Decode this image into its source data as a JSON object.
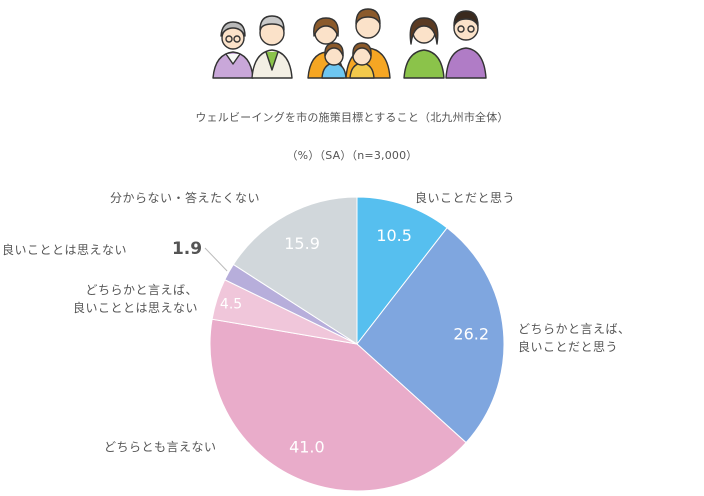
{
  "chart_data": {
    "type": "pie",
    "title": "ウェルビーイングを市の施策目標とすること（北九州市全体）",
    "subtitle": "（%）（SA）（n=3,000）",
    "slices": [
      {
        "label": "良いことだと思う",
        "lines": [
          "良いことだと思う"
        ],
        "value": 10.5,
        "value_label": "10.5",
        "color": "#56BFEF"
      },
      {
        "label": "どちらかと言えば、良いことだと思う",
        "lines": [
          "どちらかと言えば、",
          "良いことだと思う"
        ],
        "value": 26.2,
        "value_label": "26.2",
        "color": "#7FA6DF"
      },
      {
        "label": "どちらとも言えない",
        "lines": [
          "どちらとも言えない"
        ],
        "value": 41.0,
        "value_label": "41.0",
        "color": "#E9ACCA"
      },
      {
        "label": "どちらかと言えば、良いこととは思えない",
        "lines": [
          "どちらかと言えば、",
          "良いこととは思えない"
        ],
        "value": 4.5,
        "value_label": "4.5",
        "color": "#F0C6DA"
      },
      {
        "label": "良いこととは思えない",
        "lines": [
          "良いこととは思えない"
        ],
        "value": 1.9,
        "value_label": "1.9",
        "color": "#B7AEDB"
      },
      {
        "label": "分からない・答えたくない",
        "lines": [
          "分からない・答えたくない"
        ],
        "value": 15.9,
        "value_label": "15.9",
        "color": "#D1D7DB"
      }
    ]
  }
}
